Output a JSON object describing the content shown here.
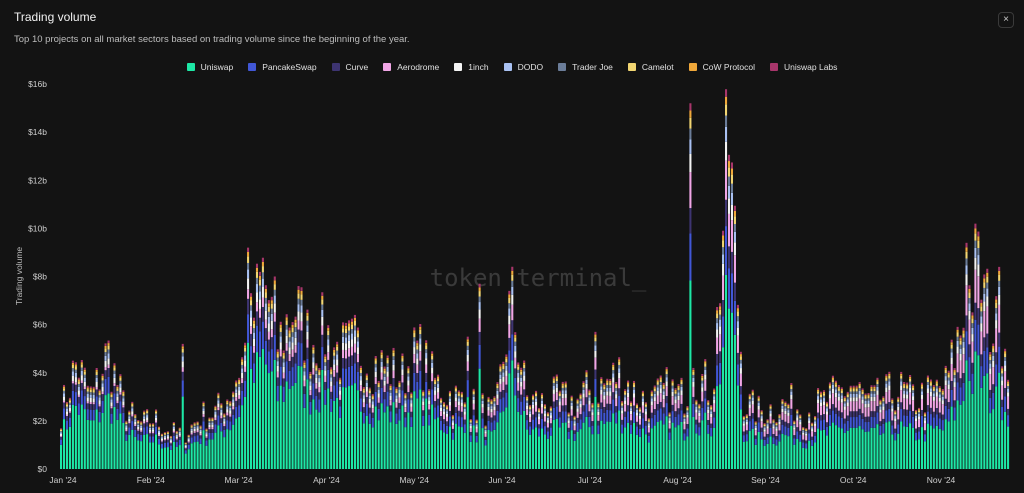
{
  "header": {
    "title": "Trading volume",
    "subtitle": "Top 10 projects on all market sectors based on trading volume since the beginning of the year.",
    "close_glyph": "×"
  },
  "watermark": "token terminal_",
  "chart_data": {
    "type": "bar",
    "stacked": true,
    "ylabel": "Trading volume",
    "yticks": [
      "$0",
      "$2b",
      "$4b",
      "$6b",
      "$8b",
      "$10b",
      "$12b",
      "$14b",
      "$16b"
    ],
    "ylim": [
      0,
      16
    ],
    "unit": "billion USD",
    "xticks": [
      "Jan '24",
      "Feb '24",
      "Mar '24",
      "Apr '24",
      "May '24",
      "Jun '24",
      "Jul '24",
      "Aug '24",
      "Sep '24",
      "Oct '24",
      "Nov '24"
    ],
    "legend_position": "top-center",
    "grid": false,
    "series": [
      {
        "name": "Uniswap",
        "color": "#1de8a6"
      },
      {
        "name": "PancakeSwap",
        "color": "#4157d6"
      },
      {
        "name": "Curve",
        "color": "#3d3471"
      },
      {
        "name": "Aerodrome",
        "color": "#f1a6e6"
      },
      {
        "name": "1inch",
        "color": "#f3f3f3"
      },
      {
        "name": "DODO",
        "color": "#a9c1f2"
      },
      {
        "name": "Trader Joe",
        "color": "#6b7d99"
      },
      {
        "name": "Camelot",
        "color": "#f2d672"
      },
      {
        "name": "CoW Protocol",
        "color": "#f0a83a"
      },
      {
        "name": "Uniswap Labs",
        "color": "#a8366b"
      }
    ],
    "weekly_totals_b": [
      2.6,
      4.8,
      3.2,
      5.3,
      3.0,
      2.0,
      2.3,
      1.7,
      1.6,
      2.4,
      2.6,
      3.6,
      5.6,
      8.8,
      5.6,
      7.5,
      5.8,
      6.2,
      5.2,
      5.6,
      4.8,
      4.6,
      4.2,
      5.4,
      4.0,
      3.4,
      3.0,
      2.8,
      2.5,
      7.7,
      3.2,
      3.0,
      3.3,
      3.0,
      3.6,
      3.8,
      4.4,
      3.4,
      3.0,
      3.6,
      3.3,
      4.2,
      3.6,
      15.1,
      3.0,
      2.6,
      2.8,
      3.0,
      2.6,
      3.0,
      3.4,
      3.8,
      3.0,
      3.3,
      3.6,
      3.2,
      3.4,
      3.8,
      6.4,
      9.2,
      6.4,
      5.6
    ]
  }
}
